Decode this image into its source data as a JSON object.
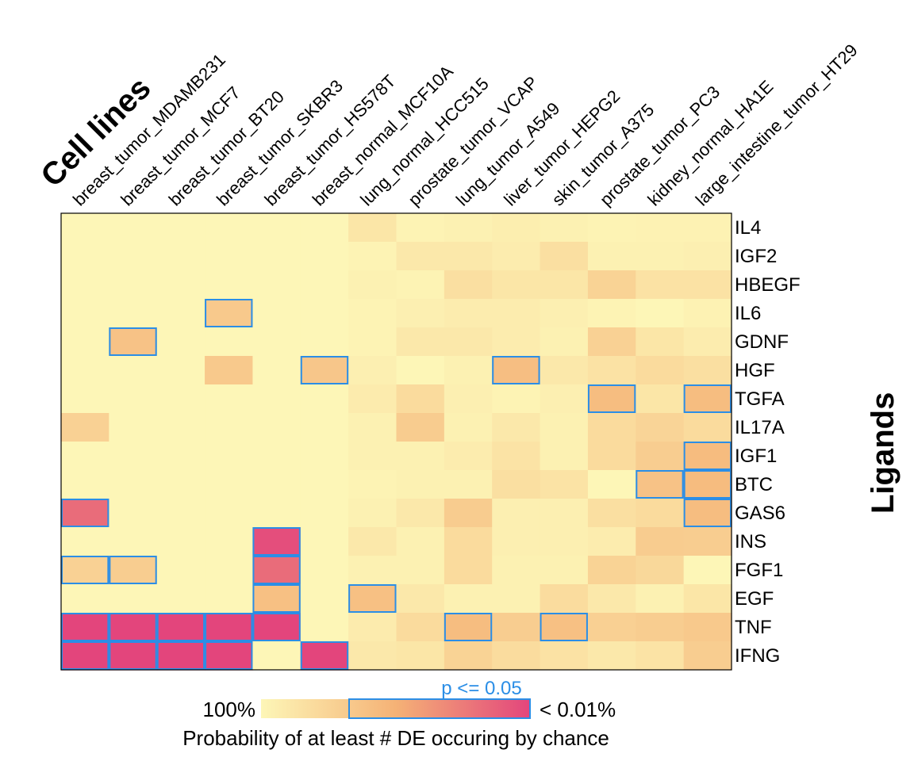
{
  "chart_data": {
    "type": "heatmap",
    "col_title": "Cell lines",
    "row_title": "Ligands",
    "columns": [
      "breast_tumor_MDAMB231",
      "breast_tumor_MCF7",
      "breast_tumor_BT20",
      "breast_tumor_SKBR3",
      "breast_tumor_HS578T",
      "breast_normal_MCF10A",
      "lung_normal_HCC515",
      "prostate_tumor_VCAP",
      "lung_tumor_A549",
      "liver_tumor_HEPG2",
      "skin_tumor_A375",
      "prostate_tumor_PC3",
      "kidney_normal_HA1E",
      "large_intestine_tumor_HT29"
    ],
    "rows": [
      "IL4",
      "IGF2",
      "HBEGF",
      "IL6",
      "GDNF",
      "HGF",
      "TGFA",
      "IL17A",
      "IGF1",
      "BTC",
      "GAS6",
      "INS",
      "FGF1",
      "EGF",
      "TNF",
      "IFNG"
    ],
    "values": [
      [
        0.0,
        0.0,
        0.0,
        0.0,
        0.0,
        0.0,
        0.12,
        0.02,
        0.04,
        0.06,
        0.04,
        0.02,
        0.03,
        0.03
      ],
      [
        0.0,
        0.0,
        0.0,
        0.0,
        0.0,
        0.0,
        0.02,
        0.1,
        0.1,
        0.07,
        0.17,
        0.04,
        0.04,
        0.05
      ],
      [
        0.0,
        0.0,
        0.0,
        0.0,
        0.0,
        0.0,
        0.04,
        0.02,
        0.17,
        0.12,
        0.12,
        0.26,
        0.15,
        0.15
      ],
      [
        0.0,
        0.0,
        0.0,
        0.33,
        0.0,
        0.0,
        0.02,
        0.05,
        0.07,
        0.07,
        0.05,
        0.02,
        0.0,
        0.03
      ],
      [
        0.0,
        0.38,
        0.0,
        0.0,
        0.0,
        0.0,
        0.02,
        0.1,
        0.1,
        0.07,
        0.04,
        0.27,
        0.12,
        0.07
      ],
      [
        0.0,
        0.0,
        0.0,
        0.33,
        0.0,
        0.35,
        0.05,
        0.0,
        0.04,
        0.41,
        0.1,
        0.15,
        0.2,
        0.17
      ],
      [
        0.0,
        0.0,
        0.0,
        0.0,
        0.0,
        0.0,
        0.08,
        0.2,
        0.05,
        0.02,
        0.05,
        0.42,
        0.12,
        0.42
      ],
      [
        0.27,
        0.0,
        0.0,
        0.0,
        0.0,
        0.0,
        0.04,
        0.31,
        0.04,
        0.1,
        0.04,
        0.2,
        0.25,
        0.2
      ],
      [
        0.0,
        0.0,
        0.0,
        0.0,
        0.0,
        0.0,
        0.04,
        0.04,
        0.07,
        0.14,
        0.04,
        0.2,
        0.3,
        0.43
      ],
      [
        0.0,
        0.0,
        0.0,
        0.0,
        0.0,
        0.0,
        0.02,
        0.04,
        0.04,
        0.17,
        0.14,
        0.0,
        0.38,
        0.43
      ],
      [
        0.82,
        0.0,
        0.0,
        0.0,
        0.0,
        0.0,
        0.04,
        0.1,
        0.31,
        0.05,
        0.05,
        0.17,
        0.2,
        0.42
      ],
      [
        0.0,
        0.0,
        0.0,
        0.0,
        0.96,
        0.0,
        0.1,
        0.04,
        0.2,
        0.05,
        0.05,
        0.07,
        0.31,
        0.3
      ],
      [
        0.27,
        0.3,
        0.0,
        0.0,
        0.82,
        0.0,
        0.04,
        0.04,
        0.2,
        0.04,
        0.04,
        0.26,
        0.22,
        0.0
      ],
      [
        0.0,
        0.0,
        0.0,
        0.0,
        0.4,
        0.0,
        0.4,
        0.1,
        0.04,
        0.04,
        0.19,
        0.1,
        0.04,
        0.12
      ],
      [
        1.0,
        1.0,
        1.0,
        1.0,
        1.0,
        0.0,
        0.08,
        0.2,
        0.42,
        0.3,
        0.4,
        0.28,
        0.3,
        0.33
      ],
      [
        1.0,
        1.0,
        1.0,
        1.0,
        0.0,
        1.0,
        0.1,
        0.12,
        0.26,
        0.19,
        0.15,
        0.1,
        0.14,
        0.3
      ]
    ],
    "significant": [
      [
        3,
        3
      ],
      [
        4,
        1
      ],
      [
        5,
        5
      ],
      [
        5,
        9
      ],
      [
        6,
        11
      ],
      [
        6,
        13
      ],
      [
        8,
        13
      ],
      [
        9,
        12
      ],
      [
        9,
        13
      ],
      [
        10,
        0
      ],
      [
        10,
        13
      ],
      [
        11,
        4
      ],
      [
        12,
        0
      ],
      [
        12,
        1
      ],
      [
        12,
        4
      ],
      [
        13,
        4
      ],
      [
        13,
        6
      ],
      [
        14,
        0
      ],
      [
        14,
        1
      ],
      [
        14,
        2
      ],
      [
        14,
        3
      ],
      [
        14,
        4
      ],
      [
        14,
        8
      ],
      [
        14,
        10
      ],
      [
        15,
        0
      ],
      [
        15,
        1
      ],
      [
        15,
        2
      ],
      [
        15,
        3
      ],
      [
        15,
        5
      ]
    ],
    "color_scale": {
      "low": "#fdf6b7",
      "mid": "#f5b276",
      "high": "#e3457c",
      "highlight_border": "#2b8ee6"
    },
    "legend": {
      "left_label": "100%",
      "right_label": "< 0.01%",
      "significance_label": "p <= 0.05",
      "caption": "Probability of at least # DE occuring by chance"
    }
  }
}
